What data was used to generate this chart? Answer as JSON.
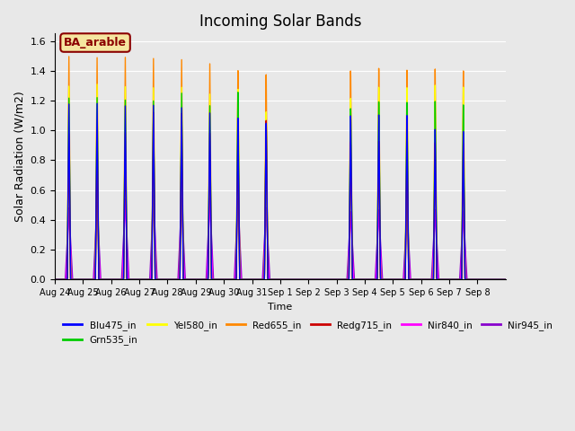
{
  "title": "Incoming Solar Bands",
  "xlabel": "Time",
  "ylabel": "Solar Radiation (W/m2)",
  "ylim": [
    0,
    1.65
  ],
  "yticks": [
    0.0,
    0.2,
    0.4,
    0.6,
    0.8,
    1.0,
    1.2,
    1.4,
    1.6
  ],
  "annotation": "BA_arable",
  "legend_entries": [
    "Blu475_in",
    "Grn535_in",
    "Yel580_in",
    "Red655_in",
    "Redg715_in",
    "Nir840_in",
    "Nir945_in"
  ],
  "line_colors": {
    "Blu475_in": "#0000ff",
    "Grn535_in": "#00cc00",
    "Yel580_in": "#ffff00",
    "Red655_in": "#ff8800",
    "Redg715_in": "#cc0000",
    "Nir840_in": "#ff00ff",
    "Nir945_in": "#8800cc"
  },
  "active_days": [
    0,
    1,
    2,
    3,
    4,
    5,
    6,
    7,
    10,
    11,
    12,
    13,
    14
  ],
  "peak_heights": {
    "Blu475_in": [
      1.18,
      1.19,
      1.18,
      1.19,
      1.18,
      1.15,
      1.12,
      1.09,
      1.13,
      1.13,
      1.12,
      1.02,
      1.0
    ],
    "Grn535_in": [
      1.22,
      1.23,
      1.22,
      1.22,
      1.28,
      1.2,
      1.3,
      1.09,
      1.18,
      1.22,
      1.21,
      1.21,
      1.18
    ],
    "Yel580_in": [
      1.3,
      1.32,
      1.31,
      1.31,
      1.32,
      1.28,
      1.32,
      1.17,
      1.25,
      1.32,
      1.31,
      1.32,
      1.3
    ],
    "Red655_in": [
      1.5,
      1.5,
      1.51,
      1.51,
      1.51,
      1.49,
      1.45,
      1.43,
      1.44,
      1.45,
      1.43,
      1.43,
      1.41
    ],
    "Redg715_in": [
      0.98,
      0.99,
      1.0,
      1.14,
      1.14,
      1.01,
      0.99,
      1.11,
      0.95,
      0.95,
      0.94,
      0.93,
      0.92
    ],
    "Nir840_in": [
      0.48,
      0.52,
      0.54,
      0.57,
      0.55,
      0.55,
      0.55,
      0.49,
      0.46,
      0.47,
      0.47,
      0.47,
      0.46
    ],
    "Nir945_in": [
      0.48,
      0.52,
      0.54,
      0.57,
      0.55,
      0.55,
      0.55,
      0.49,
      0.46,
      0.47,
      0.47,
      0.47,
      0.46
    ]
  },
  "sigma_narrow": 0.06,
  "sigma_wide_840": 0.1,
  "sigma_wide_945": 0.13,
  "day_labels": [
    "Aug 24",
    "Aug 25",
    "Aug 26",
    "Aug 27",
    "Aug 28",
    "Aug 29",
    "Aug 30",
    "Aug 31",
    "Sep 1",
    "Sep 2",
    "Sep 3",
    "Sep 4",
    "Sep 5",
    "Sep 6",
    "Sep 7",
    "Sep 8"
  ],
  "n_days": 16,
  "pts_per_day": 200,
  "background_color": "#e8e8e8",
  "plot_bg_color": "#e8e8e8"
}
